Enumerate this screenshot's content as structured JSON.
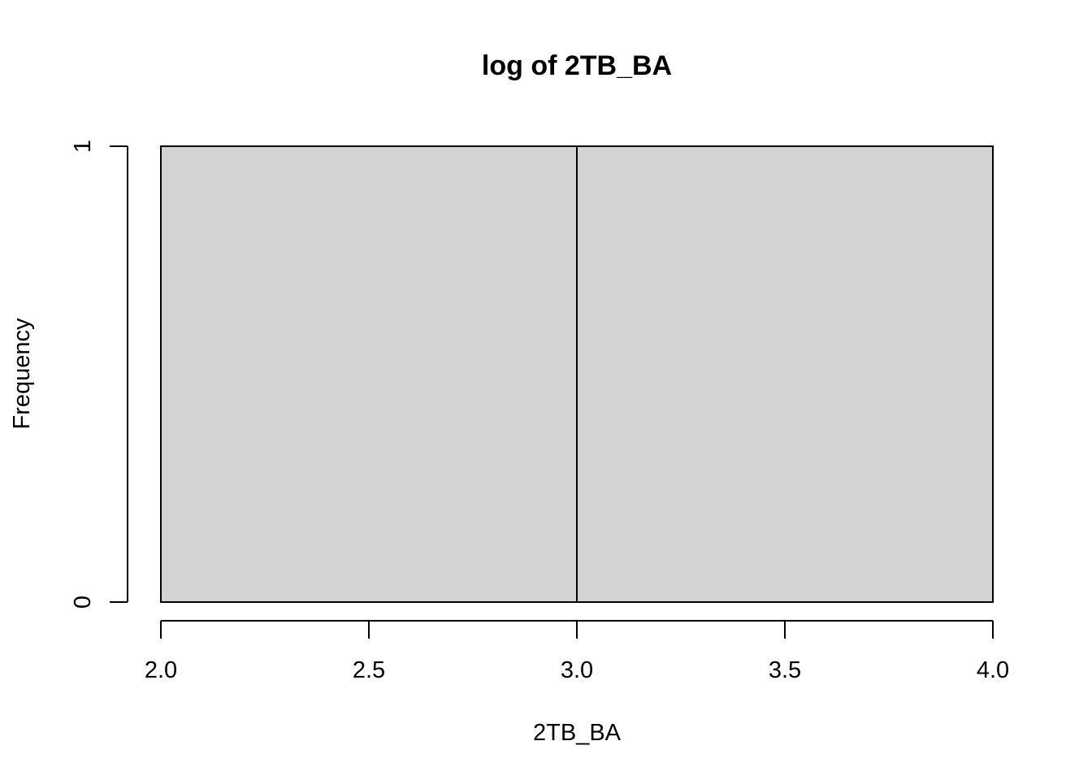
{
  "chart_data": {
    "type": "bar",
    "title": "log of 2TB_BA",
    "xlabel": "2TB_BA",
    "ylabel": "Frequency",
    "xlim": [
      2.0,
      4.0
    ],
    "ylim": [
      0,
      1
    ],
    "x_ticks": [
      "2.0",
      "2.5",
      "3.0",
      "3.5",
      "4.0"
    ],
    "y_ticks": [
      "0",
      "1"
    ],
    "bins": [
      {
        "start": 2.0,
        "end": 3.0,
        "count": 1
      },
      {
        "start": 3.0,
        "end": 4.0,
        "count": 1
      }
    ],
    "bar_color": "#d3d3d3",
    "border_color": "#000000",
    "grid": false,
    "legend": "none"
  }
}
